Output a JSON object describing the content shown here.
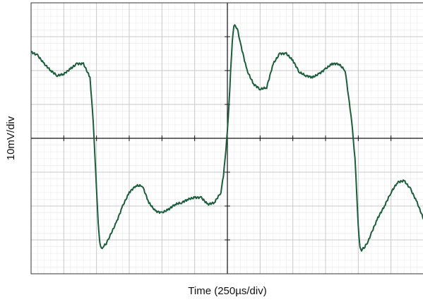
{
  "chart_data": {
    "type": "line",
    "xlabel": "Time (250µs/div)",
    "ylabel": "10mV/div",
    "divisions": {
      "x": 12,
      "y": 8,
      "minor_per_div": 5
    },
    "xlim": [
      -6,
      6
    ],
    "ylim": [
      -4,
      4
    ],
    "grid": true,
    "colors": {
      "trace": "#1b5e3b",
      "major_grid": "#c8c8c8",
      "minor_grid": "#ececec",
      "axis": "#111111",
      "frame": "#333333"
    },
    "series": [
      {
        "x": [
          -6.0,
          -5.8,
          -5.6,
          -5.4,
          -5.2,
          -5.0,
          -4.8,
          -4.6,
          -4.4,
          -4.2,
          -4.1,
          -4.05,
          -4.0,
          -3.95,
          -3.9,
          -3.85,
          -3.8,
          -3.7,
          -3.6,
          -3.4,
          -3.2,
          -3.0,
          -2.8,
          -2.6,
          -2.4,
          -2.2,
          -2.0,
          -1.8,
          -1.6,
          -1.4,
          -1.2,
          -1.0,
          -0.8,
          -0.6,
          -0.4,
          -0.2,
          -0.12,
          -0.05,
          0.0,
          0.05,
          0.1,
          0.15,
          0.2,
          0.3,
          0.4,
          0.6,
          0.8,
          1.0,
          1.2,
          1.4,
          1.6,
          1.8,
          2.0,
          2.2,
          2.4,
          2.6,
          2.8,
          3.0,
          3.2,
          3.4,
          3.6,
          3.8,
          3.9,
          3.95,
          4.0,
          4.05,
          4.1,
          4.2,
          4.3,
          4.4,
          4.6,
          4.8,
          5.0,
          5.2,
          5.4,
          5.6,
          5.8,
          6.0
        ],
        "y": [
          2.55,
          2.45,
          2.2,
          2.0,
          1.85,
          1.9,
          2.05,
          2.2,
          2.2,
          1.8,
          0.5,
          -0.5,
          -1.5,
          -2.5,
          -3.1,
          -3.25,
          -3.2,
          -3.1,
          -2.9,
          -2.5,
          -2.0,
          -1.6,
          -1.4,
          -1.4,
          -1.9,
          -2.15,
          -2.2,
          -2.1,
          -1.95,
          -1.9,
          -1.8,
          -1.75,
          -1.75,
          -1.95,
          -1.9,
          -1.6,
          -1.1,
          -0.4,
          0.2,
          1.0,
          2.0,
          2.9,
          3.35,
          3.25,
          2.8,
          2.0,
          1.6,
          1.45,
          1.5,
          2.2,
          2.5,
          2.5,
          2.3,
          1.95,
          1.85,
          1.8,
          1.9,
          2.05,
          2.2,
          2.2,
          2.0,
          0.5,
          -0.6,
          -1.6,
          -2.6,
          -3.2,
          -3.3,
          -3.2,
          -3.05,
          -2.8,
          -2.35,
          -2.0,
          -1.6,
          -1.3,
          -1.25,
          -1.5,
          -1.9,
          -2.4
        ]
      }
    ]
  }
}
